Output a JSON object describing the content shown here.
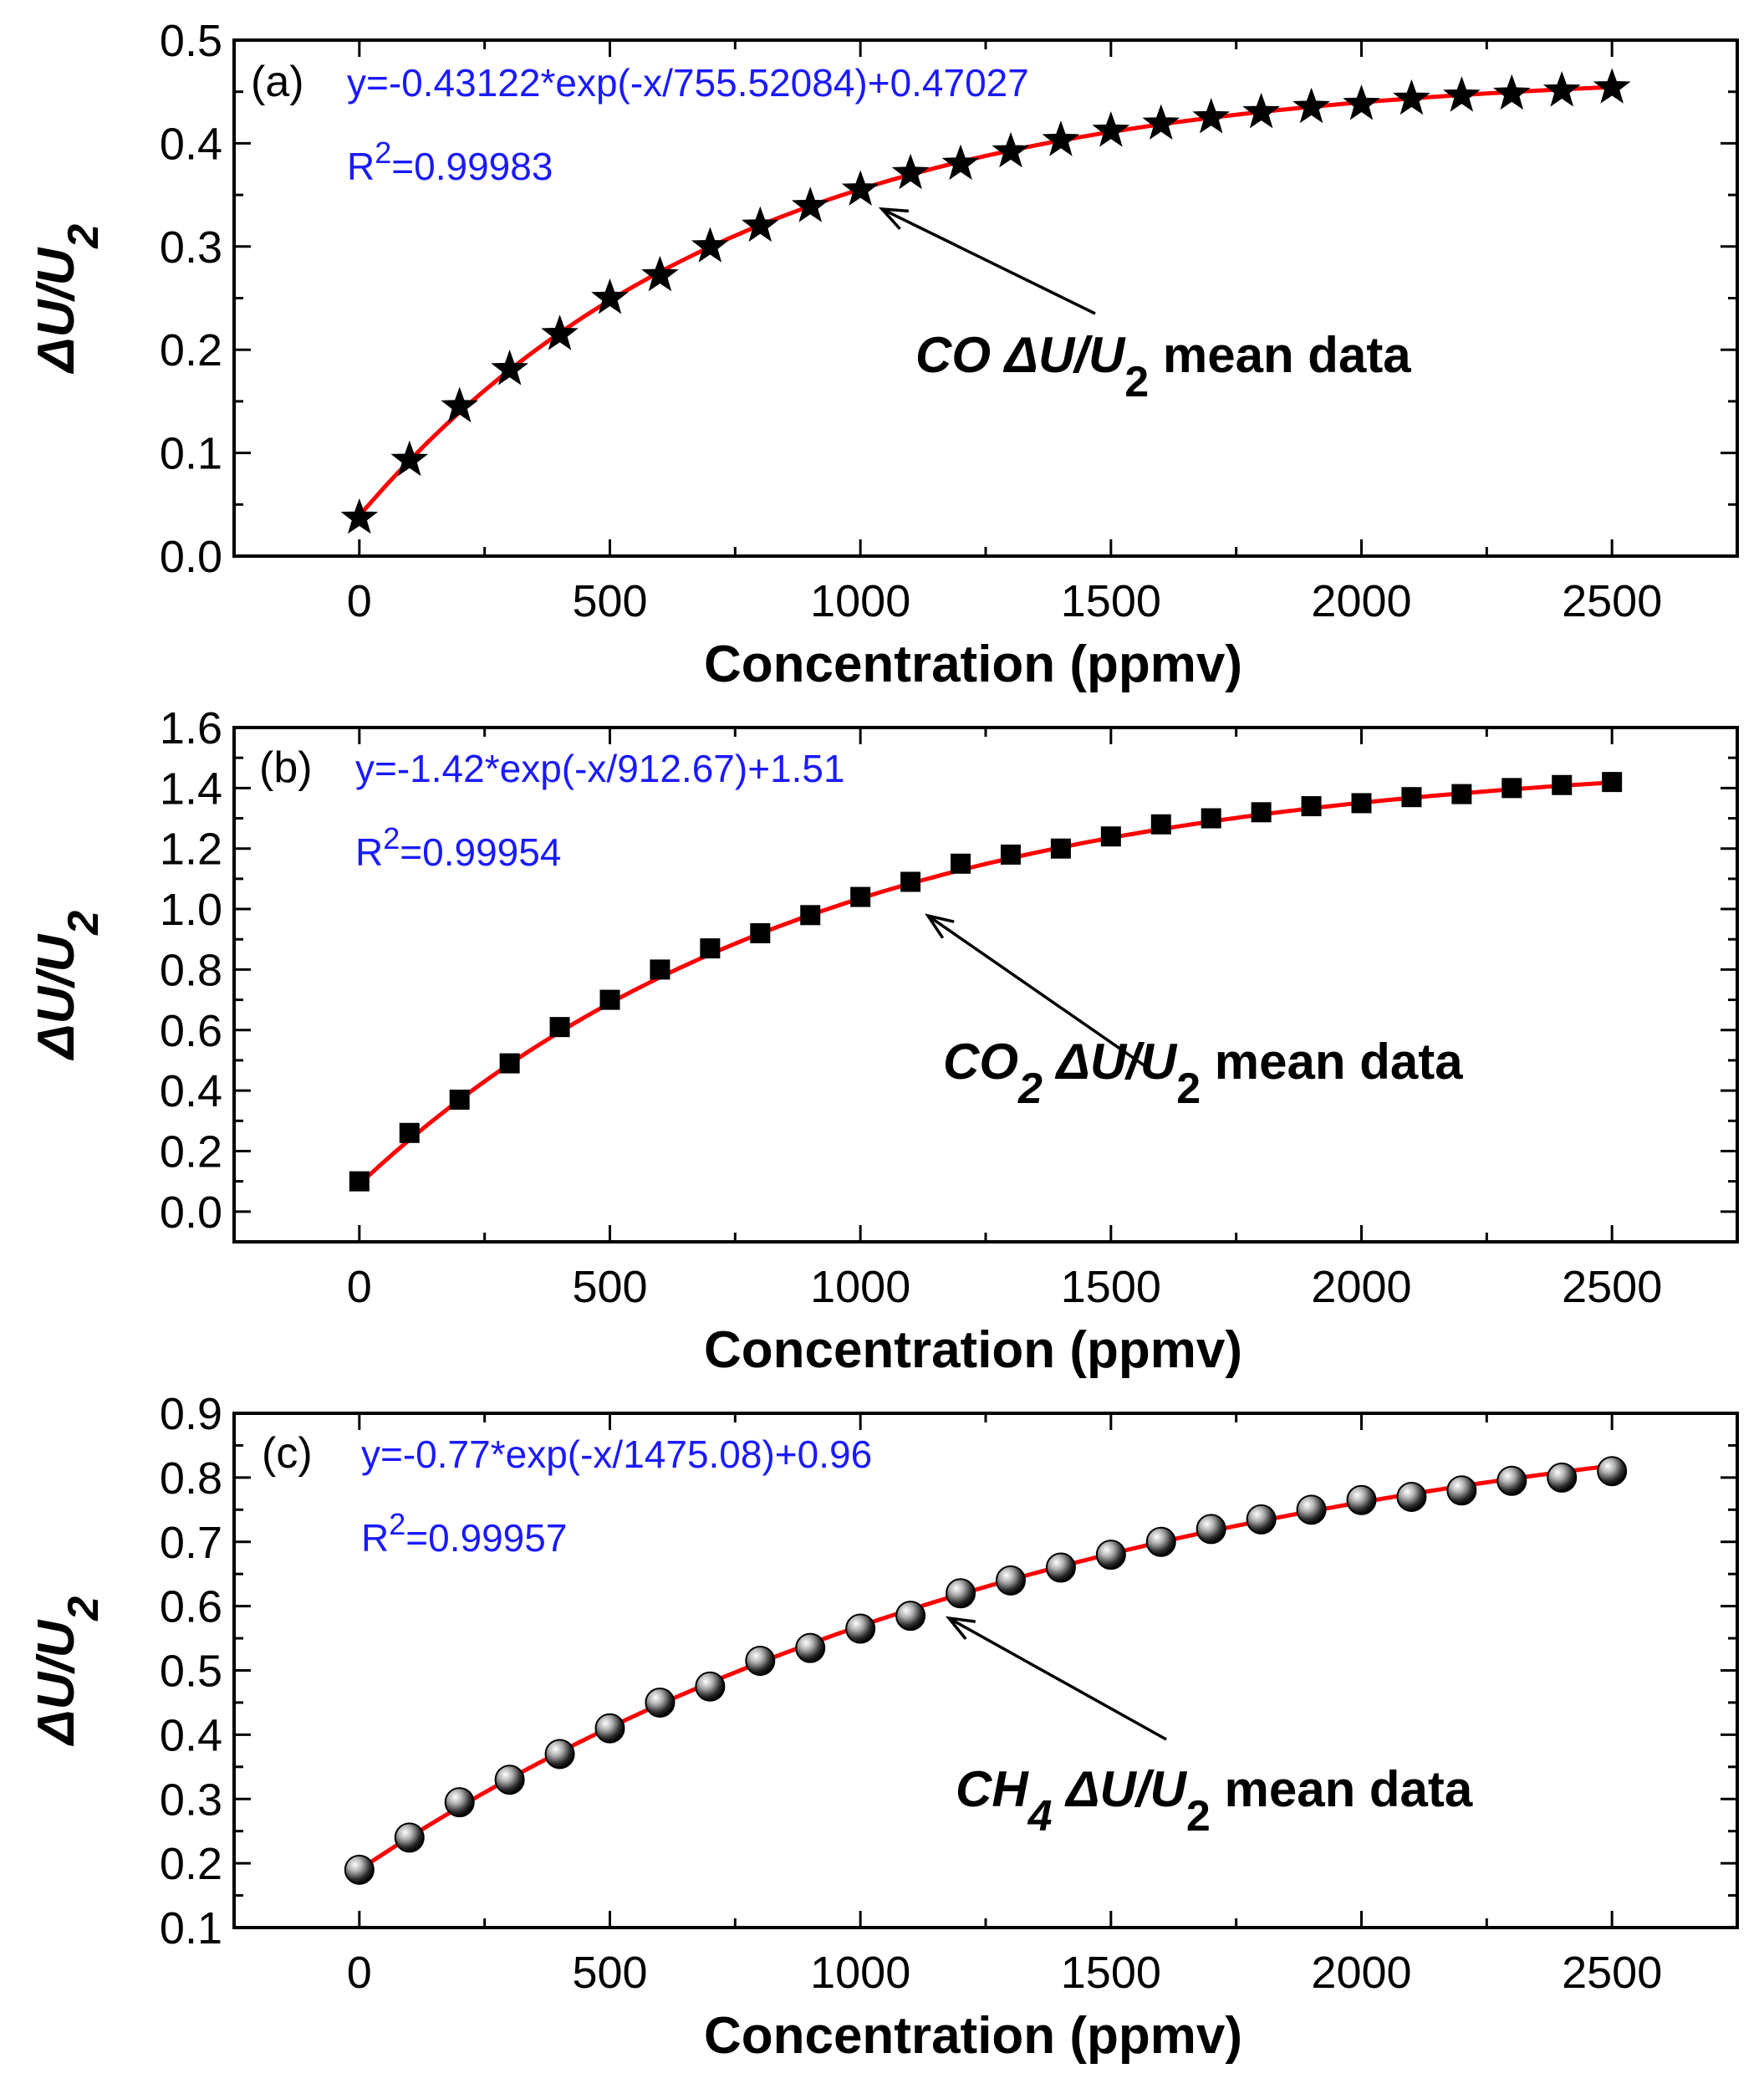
{
  "figure": {
    "panels": [
      {
        "id": "a",
        "marker": "star",
        "line_color": "#ff0000",
        "equation_color": "#1a1aff",
        "eq_tokens": {
          "panel_label": "(a)",
          "equation": "y=-0.43122*exp(-x/755.52084)+0.47027",
          "r2_prefix": "R",
          "r2_sup": "2",
          "r2_value": "=0.99983",
          "annot_gas": "CO",
          "annot_gas_sub": "",
          "annot_delta": "ΔU/U",
          "annot_delta_sub": "2",
          "annot_suffix": "mean data",
          "ylabel_main": "ΔU/U",
          "ylabel_sub": "2",
          "xlabel": "Concentration (ppmv)"
        },
        "fit": {
          "A": -0.43122,
          "t": 755.52084,
          "y0": 0.47027
        }
      },
      {
        "id": "b",
        "marker": "square",
        "line_color": "#ff0000",
        "equation_color": "#1a1aff",
        "eq_tokens": {
          "panel_label": "(b)",
          "equation": "y=-1.42*exp(-x/912.67)+1.51",
          "r2_prefix": "R",
          "r2_sup": "2",
          "r2_value": "=0.99954",
          "annot_gas": "CO",
          "annot_gas_sub": "2",
          "annot_delta": "ΔU/U",
          "annot_delta_sub": "2",
          "annot_suffix": "mean data",
          "ylabel_main": "ΔU/U",
          "ylabel_sub": "2",
          "xlabel": "Concentration (ppmv)"
        },
        "fit": {
          "A": -1.42,
          "t": 912.67,
          "y0": 1.51
        }
      },
      {
        "id": "c",
        "marker": "sphere",
        "line_color": "#ff0000",
        "equation_color": "#1a1aff",
        "eq_tokens": {
          "panel_label": "(c)",
          "equation": "y=-0.77*exp(-x/1475.08)+0.96",
          "r2_prefix": "R",
          "r2_sup": "2",
          "r2_value": "=0.99957",
          "annot_gas": "CH",
          "annot_gas_sub": "4",
          "annot_delta": "ΔU/U",
          "annot_delta_sub": "2",
          "annot_suffix": "mean data",
          "ylabel_main": "ΔU/U",
          "ylabel_sub": "2",
          "xlabel": "Concentration (ppmv)"
        },
        "fit": {
          "A": -0.77,
          "t": 1475.08,
          "y0": 0.96
        }
      }
    ]
  },
  "chart_data": [
    {
      "type": "scatter",
      "title": "(a)",
      "xlabel": "Concentration (ppmv)",
      "ylabel": "ΔU/U2",
      "xlim": [
        -250,
        2750
      ],
      "ylim": [
        0.0,
        0.5
      ],
      "xticks": [
        "0",
        "500",
        "1000",
        "1500",
        "2000",
        "2500"
      ],
      "yticks": [
        "0.0",
        "0.1",
        "0.2",
        "0.3",
        "0.4",
        "0.5"
      ],
      "series": [
        {
          "name": "CO ΔU/U2 mean data",
          "x": [
            0,
            100,
            200,
            300,
            400,
            500,
            600,
            700,
            800,
            900,
            1000,
            1100,
            1200,
            1300,
            1400,
            1500,
            1600,
            1700,
            1800,
            1900,
            2000,
            2100,
            2200,
            2300,
            2400,
            2500
          ],
          "y": [
            0.037,
            0.093,
            0.145,
            0.181,
            0.215,
            0.25,
            0.272,
            0.3,
            0.32,
            0.339,
            0.355,
            0.371,
            0.38,
            0.392,
            0.403,
            0.412,
            0.419,
            0.425,
            0.43,
            0.435,
            0.438,
            0.443,
            0.446,
            0.448,
            0.451,
            0.454
          ]
        }
      ]
    },
    {
      "type": "scatter",
      "title": "(b)",
      "xlabel": "Concentration (ppmv)",
      "ylabel": "ΔU/U2",
      "xlim": [
        -250,
        2750
      ],
      "ylim": [
        -0.1,
        1.6
      ],
      "xticks": [
        "0",
        "500",
        "1000",
        "1500",
        "2000",
        "2500"
      ],
      "yticks": [
        "0.0",
        "0.2",
        "0.4",
        "0.6",
        "0.8",
        "1.0",
        "1.2",
        "1.4",
        "1.6"
      ],
      "series": [
        {
          "name": "CO2 ΔU/U2 mean data",
          "x": [
            0,
            100,
            200,
            300,
            400,
            500,
            600,
            700,
            800,
            900,
            1000,
            1100,
            1200,
            1300,
            1400,
            1500,
            1600,
            1700,
            1800,
            1900,
            2000,
            2100,
            2200,
            2300,
            2400,
            2500
          ],
          "y": [
            0.1,
            0.26,
            0.37,
            0.49,
            0.61,
            0.7,
            0.8,
            0.87,
            0.92,
            0.98,
            1.04,
            1.09,
            1.15,
            1.18,
            1.2,
            1.24,
            1.28,
            1.3,
            1.32,
            1.34,
            1.35,
            1.37,
            1.38,
            1.4,
            1.41,
            1.42
          ]
        }
      ]
    },
    {
      "type": "scatter",
      "title": "(c)",
      "xlabel": "Concentration (ppmv)",
      "ylabel": "ΔU/U2",
      "xlim": [
        -250,
        2750
      ],
      "ylim": [
        0.1,
        0.9
      ],
      "xticks": [
        "0",
        "500",
        "1000",
        "1500",
        "2000",
        "2500"
      ],
      "yticks": [
        "0.1",
        "0.2",
        "0.3",
        "0.4",
        "0.5",
        "0.6",
        "0.7",
        "0.8",
        "0.9"
      ],
      "series": [
        {
          "name": "CH4 ΔU/U2 mean data",
          "x": [
            0,
            100,
            200,
            300,
            400,
            500,
            600,
            700,
            800,
            900,
            1000,
            1100,
            1200,
            1300,
            1400,
            1500,
            1600,
            1700,
            1800,
            1900,
            2000,
            2100,
            2200,
            2300,
            2400,
            2500
          ],
          "y": [
            0.19,
            0.24,
            0.295,
            0.33,
            0.37,
            0.41,
            0.45,
            0.475,
            0.515,
            0.535,
            0.565,
            0.585,
            0.62,
            0.64,
            0.66,
            0.68,
            0.7,
            0.72,
            0.735,
            0.75,
            0.765,
            0.77,
            0.78,
            0.795,
            0.8,
            0.81
          ]
        }
      ]
    }
  ]
}
